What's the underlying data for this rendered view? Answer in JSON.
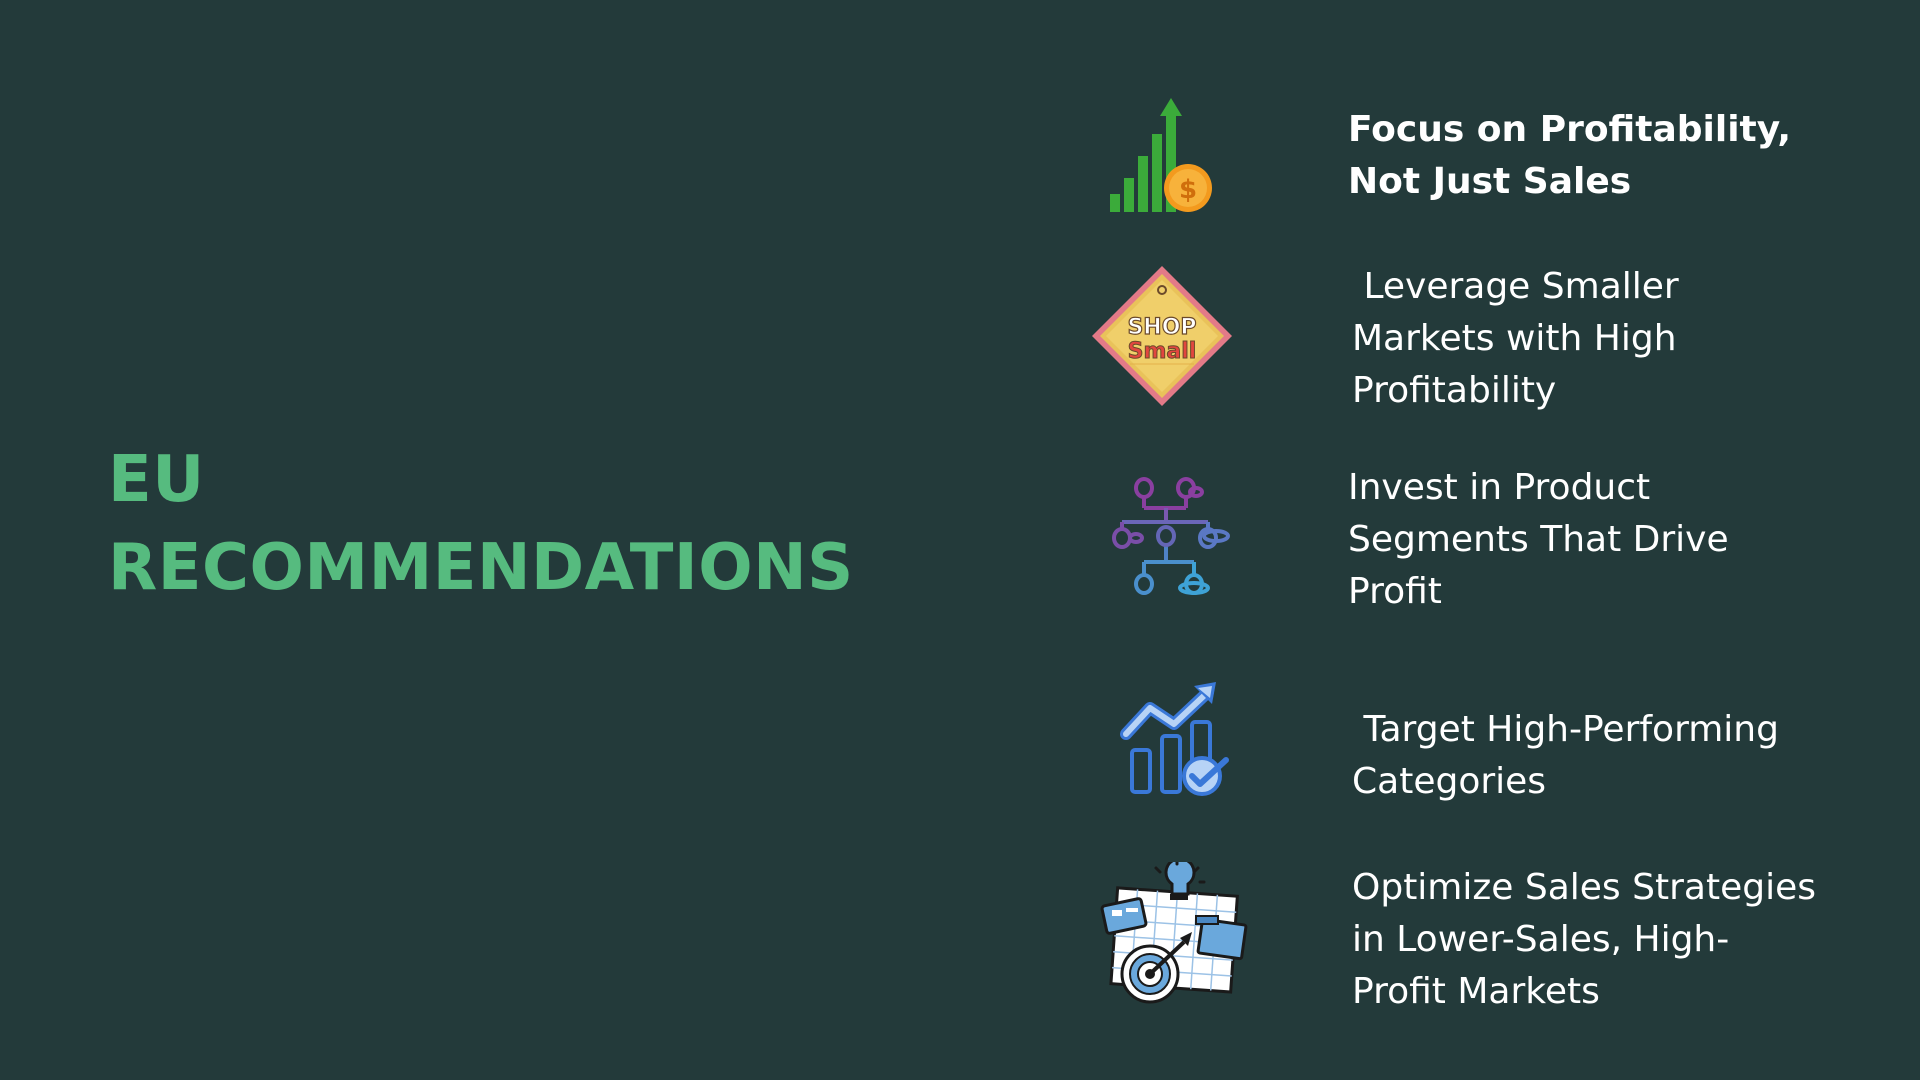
{
  "title": {
    "line1": "EU",
    "line2": "RECOMMENDATIONS",
    "color": "#56bb7f"
  },
  "background": "#233a3a",
  "items": [
    {
      "icon": "growth-chart-coin-icon",
      "lines": [
        "Focus on Profitability,",
        "Not Just Sales"
      ]
    },
    {
      "icon": "shop-small-sign-icon",
      "sign_top": "SHOP",
      "sign_bottom": "Small",
      "lines": [
        " Leverage Smaller",
        "Markets with High",
        "Profitability"
      ]
    },
    {
      "icon": "segment-network-icon",
      "lines": [
        "Invest in Product",
        "Segments That Drive",
        "Profit"
      ]
    },
    {
      "icon": "performance-chart-check-icon",
      "lines": [
        " Target High-Performing",
        "Categories"
      ]
    },
    {
      "icon": "strategy-board-target-icon",
      "lines": [
        "Optimize Sales Strategies",
        "in Lower-Sales, High-",
        "Profit Markets"
      ]
    }
  ]
}
